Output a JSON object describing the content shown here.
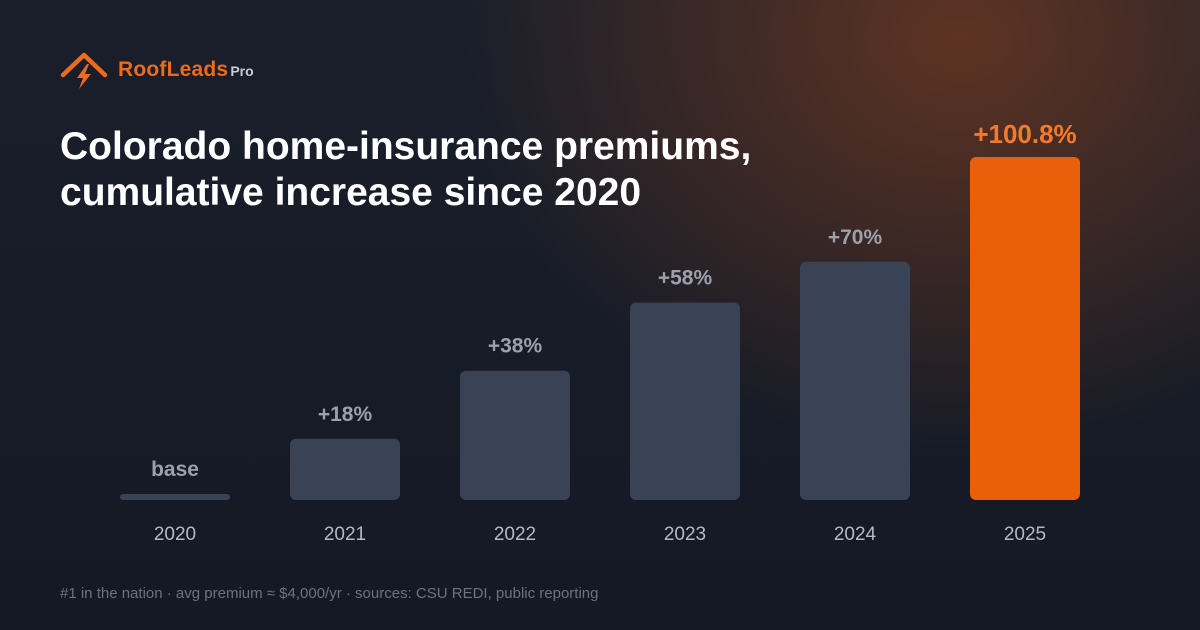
{
  "brand": {
    "name": "RoofLeads",
    "suffix": "Pro",
    "accent_color": "#ee6a1c",
    "icon": "roof-lightning-icon"
  },
  "title_lines": [
    "Colorado home-insurance premiums,",
    "cumulative increase since 2020"
  ],
  "footer": "#1 in the nation · avg premium ≈ $4,000/yr · sources: CSU REDI, public reporting",
  "chart_data": {
    "type": "bar",
    "categories": [
      "2020",
      "2021",
      "2022",
      "2023",
      "2024",
      "2025"
    ],
    "values": [
      0,
      18,
      38,
      58,
      70,
      100.8
    ],
    "data_labels": [
      "base",
      "+18%",
      "+38%",
      "+58%",
      "+70%",
      "+100.8%"
    ],
    "ylabel": "",
    "xlabel": "",
    "ylim": [
      0,
      100.8
    ],
    "grid": false,
    "highlight_index": 5,
    "colors": {
      "bar": "#3a4256",
      "highlight": "#ea5f0a",
      "label": "#9aa1ad",
      "highlight_label": "#f27a30",
      "tick": "#b4bac4"
    }
  }
}
